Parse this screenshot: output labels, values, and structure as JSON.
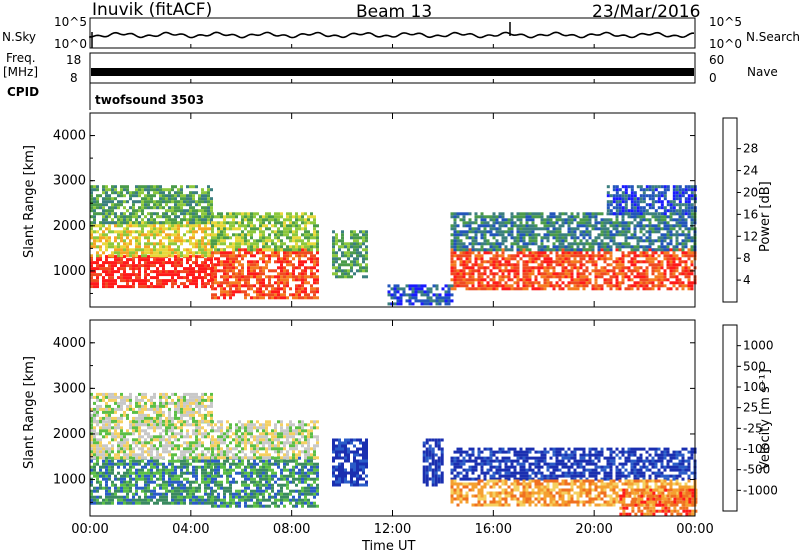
{
  "header": {
    "station": "Inuvik (fitACF)",
    "beam": "Beam 13",
    "date": "23/Mar/2016"
  },
  "strip_labels": {
    "nsky": "N.Sky",
    "freq": "Freq.",
    "mhz": "[MHz]",
    "cpid": "CPID",
    "nsearch": "N.Search",
    "nave": "Nave",
    "cpid_value": "twofsound 3503",
    "nsky_ticks": [
      "10^5",
      "10^0"
    ],
    "nsearch_ticks": [
      "10^5",
      "10^0"
    ],
    "freq_ticks": [
      "18",
      "8"
    ],
    "nave_ticks": [
      "60",
      "0"
    ]
  },
  "chart_data": [
    {
      "type": "heatmap",
      "panel": "power",
      "ylabel": "Slant Range [km]",
      "xlabel": "",
      "ylim": [
        200,
        4500
      ],
      "y_ticks": [
        1000,
        2000,
        3000,
        4000
      ],
      "x_ticks": [
        "00:00",
        "04:00",
        "08:00",
        "12:00",
        "16:00",
        "20:00",
        "00:00"
      ],
      "xlim_hours": [
        0,
        24
      ],
      "colorbar": {
        "label": "Power [dB]",
        "ticks": [
          "4",
          "8",
          "12",
          "16",
          "20",
          "24",
          "28"
        ],
        "colors": [
          "#1a1aff",
          "#2255bb",
          "#3b7f7f",
          "#4a9b4a",
          "#8cc83c",
          "#e8d83a",
          "#f5a623",
          "#f57c20",
          "#f04a20",
          "#ff1a1a"
        ]
      },
      "regions": [
        {
          "t0": 0.0,
          "t1": 4.8,
          "r0": 650,
          "r1": 1350,
          "level": 9
        },
        {
          "t0": 0.0,
          "t1": 4.8,
          "r0": 1350,
          "r1": 2100,
          "level": 5
        },
        {
          "t0": 0.0,
          "t1": 4.8,
          "r0": 2100,
          "r1": 2900,
          "level": 3
        },
        {
          "t0": 4.8,
          "t1": 9.0,
          "r0": 400,
          "r1": 1500,
          "level": 8
        },
        {
          "t0": 4.8,
          "t1": 9.0,
          "r0": 1500,
          "r1": 2300,
          "level": 4
        },
        {
          "t0": 9.6,
          "t1": 11.0,
          "r0": 900,
          "r1": 1900,
          "level": 3
        },
        {
          "t0": 11.8,
          "t1": 14.3,
          "r0": 250,
          "r1": 700,
          "level": 1
        },
        {
          "t0": 14.3,
          "t1": 24.0,
          "r0": 600,
          "r1": 1500,
          "level": 8
        },
        {
          "t0": 14.3,
          "t1": 24.0,
          "r0": 1500,
          "r1": 2300,
          "level": 2
        },
        {
          "t0": 20.5,
          "t1": 24.0,
          "r0": 2300,
          "r1": 2900,
          "level": 1
        }
      ]
    },
    {
      "type": "heatmap",
      "panel": "velocity",
      "ylabel": "Slant Range [km]",
      "xlabel": "Time UT",
      "ylim": [
        200,
        4500
      ],
      "y_ticks": [
        1000,
        2000,
        3000,
        4000
      ],
      "x_ticks": [
        "00:00",
        "04:00",
        "08:00",
        "12:00",
        "16:00",
        "20:00",
        "00:00"
      ],
      "xlim_hours": [
        0,
        24
      ],
      "colorbar": {
        "label": "Velocity [m s⁻¹]",
        "ticks": [
          "1000",
          "500",
          "100",
          "25",
          "-25",
          "-100",
          "-500",
          "-1000"
        ],
        "colors": [
          "#1a2fb0",
          "#2a5cc8",
          "#3a8a60",
          "#5bbf45",
          "#c8c8c8",
          "#f5d060",
          "#f5a030",
          "#f07020",
          "#ff1a1a"
        ]
      },
      "regions": [
        {
          "t0": 0.0,
          "t1": 4.8,
          "r0": 500,
          "r1": 1500,
          "level": 2
        },
        {
          "t0": 0.0,
          "t1": 4.8,
          "r0": 1500,
          "r1": 2300,
          "level": 4
        },
        {
          "t0": 0.0,
          "t1": 4.8,
          "r0": 2300,
          "r1": 2900,
          "level": 4
        },
        {
          "t0": 4.8,
          "t1": 9.0,
          "r0": 400,
          "r1": 1500,
          "level": 2
        },
        {
          "t0": 4.8,
          "t1": 9.0,
          "r0": 1500,
          "r1": 2300,
          "level": 4
        },
        {
          "t0": 9.6,
          "t1": 11.0,
          "r0": 900,
          "r1": 1900,
          "level": 0
        },
        {
          "t0": 13.2,
          "t1": 14.0,
          "r0": 900,
          "r1": 1900,
          "level": 0
        },
        {
          "t0": 14.3,
          "t1": 24.0,
          "r0": 1000,
          "r1": 1700,
          "level": 0
        },
        {
          "t0": 14.3,
          "t1": 24.0,
          "r0": 450,
          "r1": 1000,
          "level": 6
        },
        {
          "t0": 21.0,
          "t1": 24.0,
          "r0": 250,
          "r1": 800,
          "level": 7
        }
      ]
    }
  ]
}
